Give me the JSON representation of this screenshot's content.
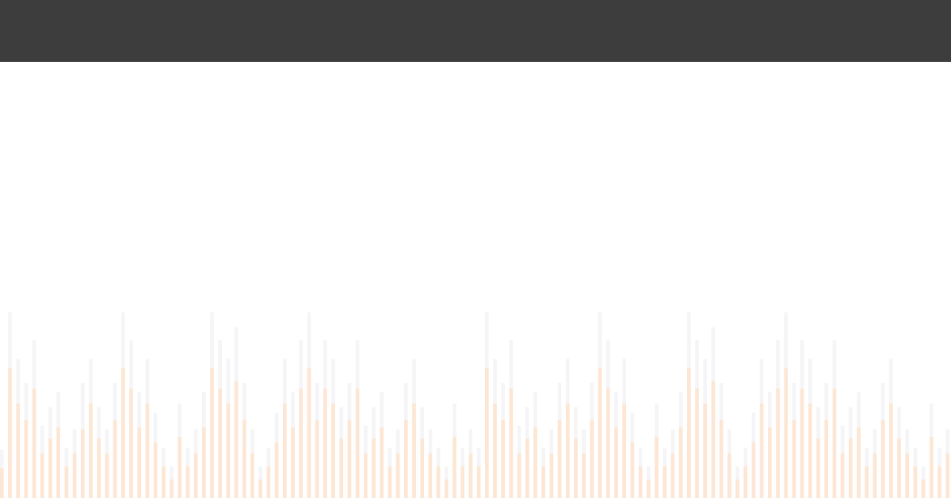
{
  "colors": {
    "header": "#3d3d3d",
    "background": "#ffffff",
    "bar_played": "#fde6d3",
    "bar_peak": "#f5f5f7"
  },
  "waveform": {
    "bar_count": 119,
    "front_levels": [
      0.16,
      0.7,
      0.51,
      0.42,
      0.59,
      0.24,
      0.32,
      0.38,
      0.17,
      0.24,
      0.37,
      0.51,
      0.32,
      0.24,
      0.42,
      0.7,
      0.59,
      0.38,
      0.51,
      0.3,
      0.17,
      0.1,
      0.33,
      0.17,
      0.24,
      0.38,
      0.7,
      0.59,
      0.51,
      0.63,
      0.42,
      0.24,
      0.1,
      0.17,
      0.3,
      0.51,
      0.38,
      0.59,
      0.7,
      0.42,
      0.59,
      0.51,
      0.32,
      0.42,
      0.59,
      0.24,
      0.32,
      0.38,
      0.17,
      0.24,
      0.42,
      0.51,
      0.32,
      0.24,
      0.17,
      0.1,
      0.33,
      0.17,
      0.24,
      0.17,
      0.7,
      0.51,
      0.42,
      0.59,
      0.24,
      0.32,
      0.38,
      0.17,
      0.24,
      0.42,
      0.51,
      0.32,
      0.24,
      0.42,
      0.7,
      0.59,
      0.38,
      0.51,
      0.3,
      0.17,
      0.1,
      0.33,
      0.17,
      0.24,
      0.38,
      0.7,
      0.59,
      0.51,
      0.63,
      0.42,
      0.24,
      0.1,
      0.17,
      0.3,
      0.51,
      0.38,
      0.59,
      0.7,
      0.42,
      0.59,
      0.51,
      0.32,
      0.42,
      0.59,
      0.24,
      0.32,
      0.38,
      0.17,
      0.24,
      0.42,
      0.51,
      0.32,
      0.24,
      0.17,
      0.1,
      0.33,
      0.17,
      0.24,
      0.24
    ],
    "back_levels": [
      0.26,
      1.0,
      0.75,
      0.62,
      0.85,
      0.39,
      0.49,
      0.57,
      0.27,
      0.37,
      0.62,
      0.75,
      0.49,
      0.37,
      0.62,
      1.0,
      0.85,
      0.57,
      0.75,
      0.46,
      0.27,
      0.17,
      0.51,
      0.27,
      0.37,
      0.57,
      1.0,
      0.85,
      0.75,
      0.92,
      0.62,
      0.37,
      0.17,
      0.27,
      0.46,
      0.75,
      0.57,
      0.85,
      1.0,
      0.62,
      0.85,
      0.75,
      0.49,
      0.62,
      0.85,
      0.39,
      0.49,
      0.57,
      0.27,
      0.37,
      0.62,
      0.75,
      0.49,
      0.37,
      0.27,
      0.17,
      0.51,
      0.27,
      0.37,
      0.27,
      1.0,
      0.75,
      0.62,
      0.85,
      0.39,
      0.49,
      0.57,
      0.27,
      0.37,
      0.62,
      0.75,
      0.49,
      0.37,
      0.62,
      1.0,
      0.85,
      0.57,
      0.75,
      0.46,
      0.27,
      0.17,
      0.51,
      0.27,
      0.37,
      0.57,
      1.0,
      0.85,
      0.75,
      0.92,
      0.62,
      0.37,
      0.17,
      0.27,
      0.46,
      0.75,
      0.57,
      0.85,
      1.0,
      0.62,
      0.85,
      0.75,
      0.49,
      0.62,
      0.85,
      0.39,
      0.49,
      0.57,
      0.27,
      0.37,
      0.62,
      0.75,
      0.49,
      0.37,
      0.27,
      0.17,
      0.51,
      0.27,
      0.37,
      0.37
    ]
  }
}
